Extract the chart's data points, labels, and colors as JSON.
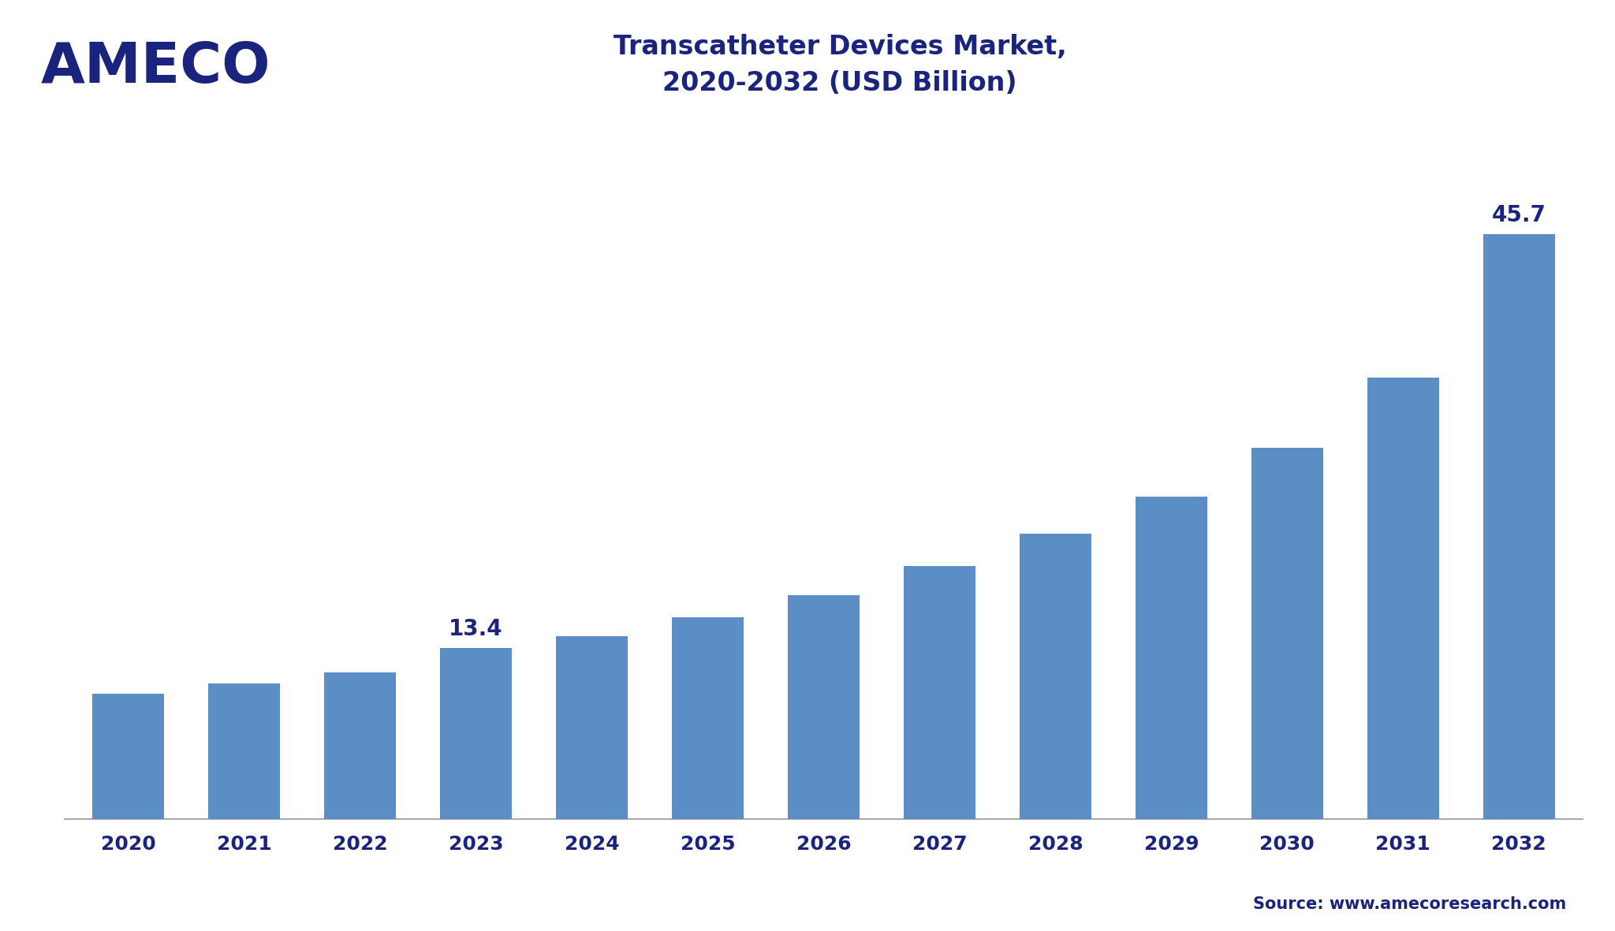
{
  "title": "Transcatheter Devices Market,\n2020-2032 (USD Billion)",
  "title_fontsize": 24,
  "title_color": "#1a237e",
  "categories": [
    "2020",
    "2021",
    "2022",
    "2023",
    "2024",
    "2025",
    "2026",
    "2027",
    "2028",
    "2029",
    "2030",
    "2031",
    "2032"
  ],
  "values": [
    9.8,
    10.6,
    11.5,
    13.4,
    14.3,
    15.8,
    17.5,
    19.8,
    22.3,
    25.2,
    29.0,
    34.5,
    45.7
  ],
  "bar_color": "#5b8ec4",
  "ylim": [
    0,
    52
  ],
  "background_color": "#ffffff",
  "plot_bg_color": "#ffffff",
  "label_2023": "13.4",
  "label_2032": "45.7",
  "label_fontsize": 20,
  "label_color": "#1a237e",
  "xtick_fontsize": 18,
  "xtick_color": "#1a237e",
  "source_text": "Source: www.amecoresearch.com",
  "source_fontsize": 15,
  "source_color": "#1a237e",
  "ameco_text": "AMECO",
  "ameco_color": "#1a237e",
  "ameco_fontsize": 52,
  "header_line_color": "#1a237e",
  "header_bg_color": "#f0f4f8",
  "axis_line_color": "#aaaaaa",
  "bar_width": 0.62
}
